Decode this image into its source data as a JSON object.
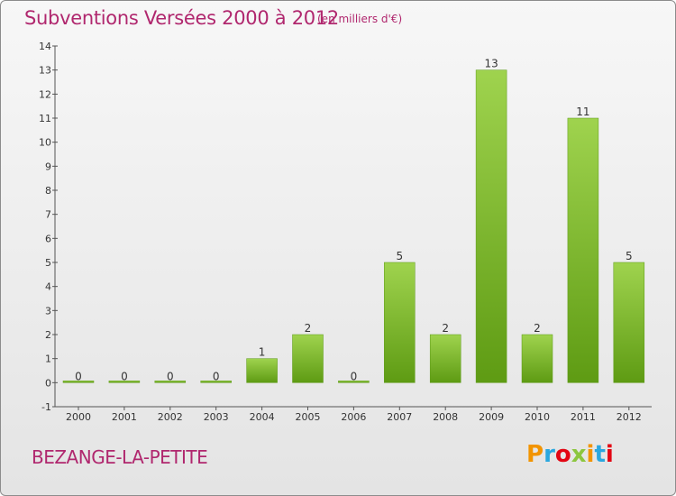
{
  "header": {
    "title": "Subventions Versées 2000 à 2012",
    "subtitle": "(en milliers d'€)"
  },
  "footer": {
    "place": "BEZANGE-LA-PETITE",
    "logo_text": "Proxiti",
    "logo_colors": [
      "#f29400",
      "#2aa7df",
      "#e30613",
      "#8cc63f",
      "#f29400",
      "#2aa7df",
      "#e30613"
    ]
  },
  "colors": {
    "title": "#b0276e",
    "bar_top": "#9fd34e",
    "bar_bottom": "#5e9b13",
    "axis": "#555555"
  },
  "chart_data": {
    "type": "bar",
    "title": "Subventions Versées 2000 à 2012",
    "subtitle": "(en milliers d'€)",
    "categories": [
      "2000",
      "2001",
      "2002",
      "2003",
      "2004",
      "2005",
      "2006",
      "2007",
      "2008",
      "2009",
      "2010",
      "2011",
      "2012"
    ],
    "values": [
      0,
      0,
      0,
      0,
      1,
      2,
      0,
      5,
      2,
      13,
      2,
      11,
      5
    ],
    "ylim": [
      -1,
      14
    ],
    "yticks": [
      -1,
      0,
      1,
      2,
      3,
      4,
      5,
      6,
      7,
      8,
      9,
      10,
      11,
      12,
      13,
      14
    ],
    "grid": false,
    "legend": "none"
  }
}
